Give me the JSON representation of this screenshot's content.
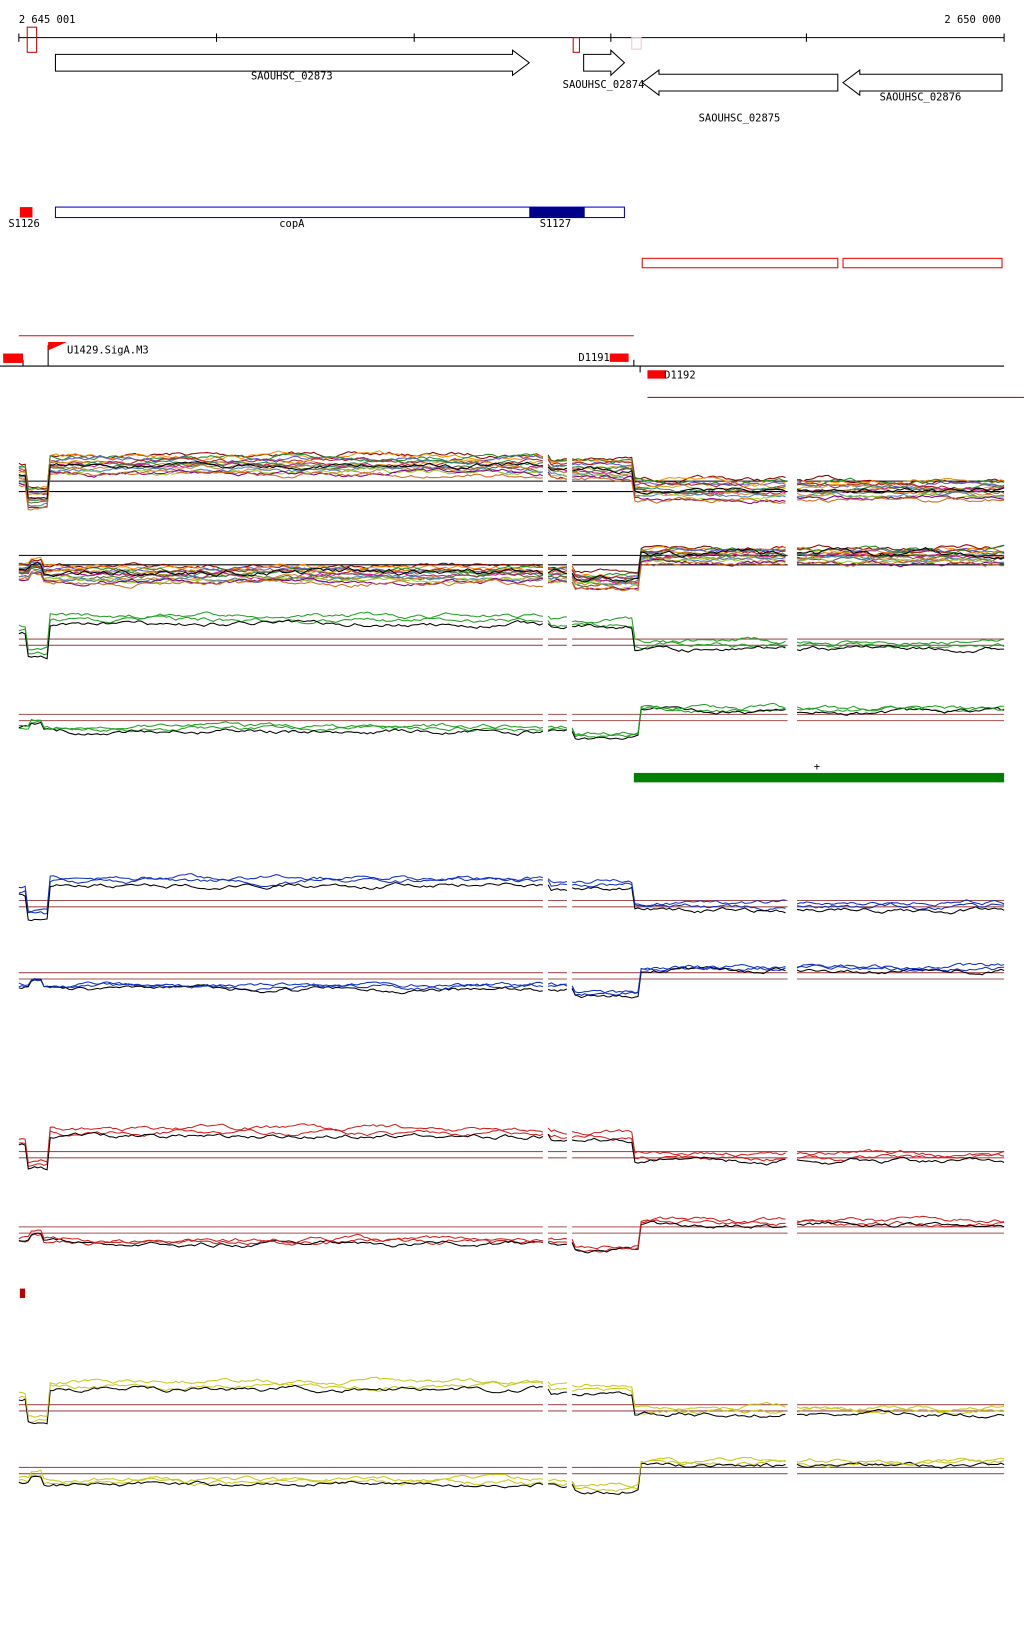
{
  "ruler": {
    "start": "2 645 001",
    "end": "2 650 000"
  },
  "genes": [
    {
      "label": "SAOUHSC_02873"
    },
    {
      "label": "SAOUHSC_02874"
    },
    {
      "label": "SAOUHSC_02875"
    },
    {
      "label": "SAOUHSC_02876"
    }
  ],
  "segments": {
    "s1126": "S1126",
    "copa": "copA",
    "s1127": "S1127"
  },
  "promoters": {
    "sig": "U1429.SigA.M3",
    "d1191": "D1191",
    "d1192": "D1192"
  },
  "strand_mark": "+"
}
